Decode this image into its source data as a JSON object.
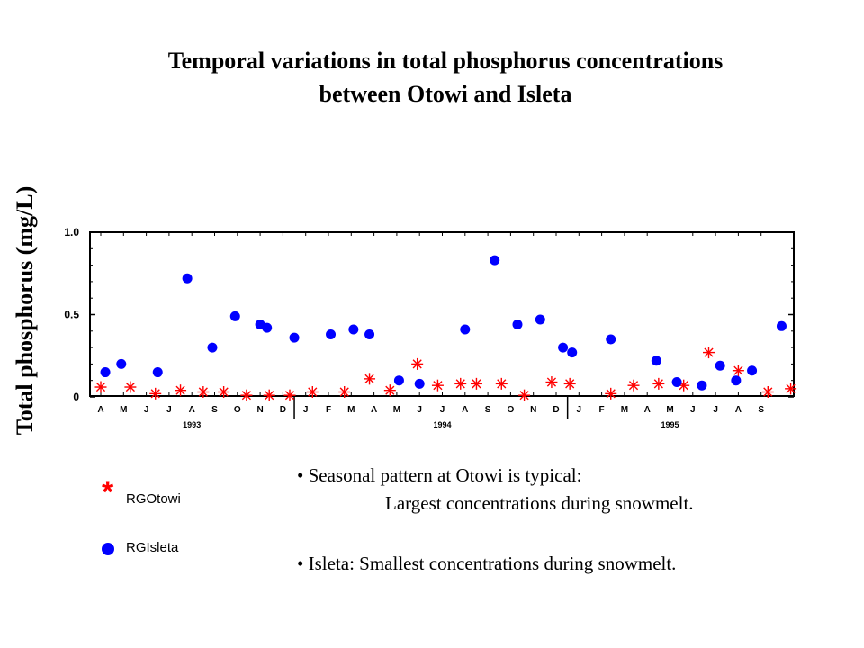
{
  "title_line1": "Temporal variations in total phosphorus concentrations",
  "title_line2": "between Otowi and Isleta",
  "notes": {
    "bullet1_line1": "• Seasonal pattern at Otowi is typical:",
    "bullet1_line2": "Largest concentrations during snowmelt.",
    "bullet2": "• Isleta: Smallest concentrations during snowmelt."
  },
  "legend": {
    "otowi_symbol": "*",
    "otowi": "RGOtowi",
    "isleta": "RGIsleta"
  },
  "colors": {
    "otowi": "#ff0000",
    "isleta": "#0000ff"
  },
  "chart_data": {
    "type": "scatter",
    "title": "",
    "ylabel": "Total phosphorus (mg/L)",
    "xlabel": "",
    "ylim": [
      0,
      1.0
    ],
    "yticks": [
      0,
      0.5,
      1.0
    ],
    "ytick_labels": [
      "0",
      "0.5",
      "1.0"
    ],
    "months": [
      "A",
      "M",
      "J",
      "J",
      "A",
      "S",
      "O",
      "N",
      "D",
      "J",
      "F",
      "M",
      "A",
      "M",
      "J",
      "J",
      "A",
      "S",
      "O",
      "N",
      "D",
      "J",
      "F",
      "M",
      "A",
      "M",
      "J",
      "J",
      "A",
      "S"
    ],
    "year_labels": [
      {
        "label": "1993",
        "center_month": 4
      },
      {
        "label": "1994",
        "center_month": 15
      },
      {
        "label": "1995",
        "center_month": 25
      }
    ],
    "year_separators_after_month": [
      8.5,
      20.5
    ],
    "x_unit": "months since April 1993",
    "series": [
      {
        "name": "RGOtowi",
        "marker": "asterisk",
        "points": [
          [
            0.0,
            0.06
          ],
          [
            1.3,
            0.06
          ],
          [
            2.4,
            0.02
          ],
          [
            3.5,
            0.04
          ],
          [
            4.5,
            0.03
          ],
          [
            5.4,
            0.03
          ],
          [
            6.4,
            0.01
          ],
          [
            7.4,
            0.01
          ],
          [
            8.3,
            0.01
          ],
          [
            9.3,
            0.03
          ],
          [
            10.7,
            0.03
          ],
          [
            11.8,
            0.11
          ],
          [
            12.7,
            0.04
          ],
          [
            13.9,
            0.2
          ],
          [
            14.8,
            0.07
          ],
          [
            15.8,
            0.08
          ],
          [
            16.5,
            0.08
          ],
          [
            17.6,
            0.08
          ],
          [
            18.6,
            0.01
          ],
          [
            19.8,
            0.09
          ],
          [
            20.6,
            0.08
          ],
          [
            22.4,
            0.02
          ],
          [
            23.4,
            0.07
          ],
          [
            24.5,
            0.08
          ],
          [
            25.6,
            0.07
          ],
          [
            26.7,
            0.27
          ],
          [
            28.0,
            0.16
          ],
          [
            29.3,
            0.03
          ],
          [
            30.3,
            0.05
          ]
        ]
      },
      {
        "name": "RGIsleta",
        "marker": "circle",
        "points": [
          [
            0.2,
            0.15
          ],
          [
            0.9,
            0.2
          ],
          [
            2.5,
            0.15
          ],
          [
            3.8,
            0.72
          ],
          [
            4.9,
            0.3
          ],
          [
            5.9,
            0.49
          ],
          [
            7.0,
            0.44
          ],
          [
            7.3,
            0.42
          ],
          [
            8.5,
            0.36
          ],
          [
            10.1,
            0.38
          ],
          [
            11.1,
            0.41
          ],
          [
            11.8,
            0.38
          ],
          [
            13.1,
            0.1
          ],
          [
            14.0,
            0.08
          ],
          [
            16.0,
            0.41
          ],
          [
            17.3,
            0.83
          ],
          [
            18.3,
            0.44
          ],
          [
            19.3,
            0.47
          ],
          [
            20.3,
            0.3
          ],
          [
            20.7,
            0.27
          ],
          [
            22.4,
            0.35
          ],
          [
            24.4,
            0.22
          ],
          [
            25.3,
            0.09
          ],
          [
            26.4,
            0.07
          ],
          [
            27.2,
            0.19
          ],
          [
            27.9,
            0.1
          ],
          [
            28.6,
            0.16
          ],
          [
            29.9,
            0.43
          ]
        ]
      }
    ]
  }
}
